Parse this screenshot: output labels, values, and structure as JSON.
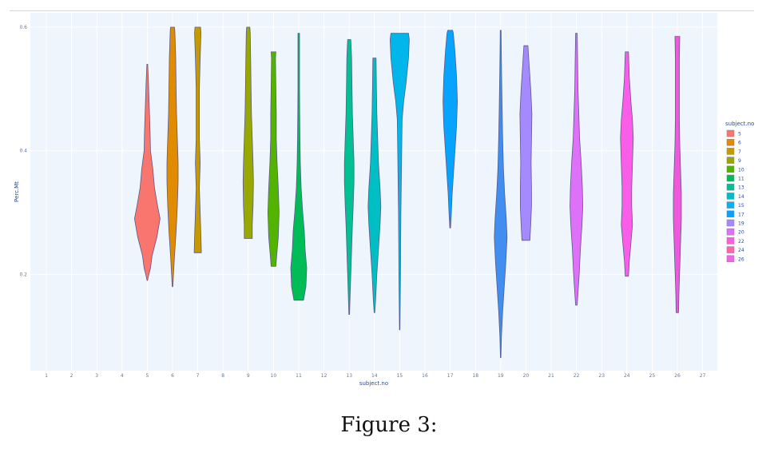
{
  "chart_data": {
    "type": "violin",
    "xlabel": "subject.no",
    "ylabel": "Perc.Mt",
    "x_ticks": [
      "1",
      "2",
      "3",
      "4",
      "5",
      "6",
      "7",
      "8",
      "9",
      "10",
      "11",
      "12",
      "13",
      "14",
      "15",
      "16",
      "17",
      "18",
      "19",
      "20",
      "21",
      "22",
      "23",
      "24",
      "25",
      "26",
      "27"
    ],
    "y_ticks": [
      0.2,
      0.4,
      0.6
    ],
    "y_tick_labels": [
      "0.2",
      "0.4",
      "0.6"
    ],
    "ylim": [
      0.05,
      0.64
    ],
    "grid": true,
    "legend": {
      "title": "subject.no",
      "placement": "right",
      "entries": [
        {
          "label": "5",
          "color": "#f8766d"
        },
        {
          "label": "6",
          "color": "#e08b00"
        },
        {
          "label": "7",
          "color": "#c49a00"
        },
        {
          "label": "9",
          "color": "#99a800"
        },
        {
          "label": "10",
          "color": "#53b400"
        },
        {
          "label": "11",
          "color": "#00bc56"
        },
        {
          "label": "13",
          "color": "#00c094"
        },
        {
          "label": "14",
          "color": "#00bfc4"
        },
        {
          "label": "15",
          "color": "#00b6eb"
        },
        {
          "label": "17",
          "color": "#06a4ff"
        },
        {
          "label": "19",
          "color": "#a58aff"
        },
        {
          "label": "20",
          "color": "#df70f8"
        },
        {
          "label": "22",
          "color": "#fb61d7"
        },
        {
          "label": "24",
          "color": "#ff66a8"
        },
        {
          "label": "26",
          "color": "#f265e0"
        }
      ]
    },
    "series": [
      {
        "subject": 5,
        "color": "#f8766d",
        "profile": [
          [
            0.19,
            0.3
          ],
          [
            0.2,
            2
          ],
          [
            0.21,
            4
          ],
          [
            0.23,
            6
          ],
          [
            0.26,
            12
          ],
          [
            0.29,
            16
          ],
          [
            0.31,
            13
          ],
          [
            0.34,
            9
          ],
          [
            0.37,
            7
          ],
          [
            0.4,
            4
          ],
          [
            0.43,
            3.5
          ],
          [
            0.47,
            2.5
          ],
          [
            0.51,
            1.5
          ],
          [
            0.54,
            0.5
          ]
        ]
      },
      {
        "subject": 6,
        "color": "#e08b00",
        "profile": [
          [
            0.18,
            0.4
          ],
          [
            0.2,
            1.2
          ],
          [
            0.23,
            2.5
          ],
          [
            0.27,
            4.5
          ],
          [
            0.31,
            6
          ],
          [
            0.35,
            7
          ],
          [
            0.38,
            7
          ],
          [
            0.42,
            6
          ],
          [
            0.46,
            5
          ],
          [
            0.5,
            4.5
          ],
          [
            0.55,
            4
          ],
          [
            0.59,
            3
          ],
          [
            0.6,
            2.5
          ]
        ]
      },
      {
        "subject": 7,
        "color": "#c49a00",
        "profile": [
          [
            0.235,
            4.5
          ],
          [
            0.26,
            4
          ],
          [
            0.3,
            3
          ],
          [
            0.34,
            2
          ],
          [
            0.38,
            3
          ],
          [
            0.42,
            2
          ],
          [
            0.46,
            2
          ],
          [
            0.5,
            2
          ],
          [
            0.55,
            3
          ],
          [
            0.59,
            4
          ],
          [
            0.6,
            3.5
          ]
        ]
      },
      {
        "subject": 9,
        "color": "#99a800",
        "profile": [
          [
            0.258,
            5
          ],
          [
            0.28,
            5
          ],
          [
            0.31,
            6
          ],
          [
            0.35,
            6.5
          ],
          [
            0.38,
            6
          ],
          [
            0.42,
            5
          ],
          [
            0.46,
            4
          ],
          [
            0.5,
            3.5
          ],
          [
            0.55,
            3
          ],
          [
            0.59,
            2.5
          ],
          [
            0.6,
            2
          ]
        ]
      },
      {
        "subject": 10,
        "color": "#53b400",
        "profile": [
          [
            0.213,
            3
          ],
          [
            0.23,
            4
          ],
          [
            0.26,
            6
          ],
          [
            0.3,
            7
          ],
          [
            0.34,
            6
          ],
          [
            0.38,
            4.5
          ],
          [
            0.42,
            3.5
          ],
          [
            0.46,
            3.5
          ],
          [
            0.5,
            3
          ],
          [
            0.55,
            2.5
          ],
          [
            0.56,
            3
          ]
        ]
      },
      {
        "subject": 11,
        "color": "#00bc56",
        "profile": [
          [
            0.158,
            6
          ],
          [
            0.18,
            9
          ],
          [
            0.21,
            10
          ],
          [
            0.24,
            8
          ],
          [
            0.27,
            7
          ],
          [
            0.3,
            5
          ],
          [
            0.34,
            3
          ],
          [
            0.38,
            2
          ],
          [
            0.42,
            1.5
          ],
          [
            0.46,
            1.2
          ],
          [
            0.5,
            1
          ],
          [
            0.55,
            1
          ],
          [
            0.59,
            1
          ]
        ]
      },
      {
        "subject": 13,
        "color": "#00c094",
        "profile": [
          [
            0.135,
            0.4
          ],
          [
            0.16,
            1
          ],
          [
            0.2,
            2
          ],
          [
            0.24,
            3
          ],
          [
            0.28,
            4
          ],
          [
            0.31,
            5
          ],
          [
            0.35,
            6
          ],
          [
            0.38,
            6
          ],
          [
            0.42,
            5
          ],
          [
            0.46,
            4
          ],
          [
            0.5,
            3.5
          ],
          [
            0.55,
            3
          ],
          [
            0.58,
            2
          ]
        ]
      },
      {
        "subject": 14,
        "color": "#00bfc4",
        "profile": [
          [
            0.138,
            0.4
          ],
          [
            0.16,
            1.5
          ],
          [
            0.2,
            3
          ],
          [
            0.24,
            5
          ],
          [
            0.28,
            7
          ],
          [
            0.31,
            8
          ],
          [
            0.34,
            7
          ],
          [
            0.38,
            5
          ],
          [
            0.42,
            4
          ],
          [
            0.46,
            3
          ],
          [
            0.5,
            2.5
          ],
          [
            0.55,
            2
          ]
        ]
      },
      {
        "subject": 15,
        "color": "#00b6eb",
        "profile": [
          [
            0.11,
            0.3
          ],
          [
            0.15,
            0.6
          ],
          [
            0.2,
            1
          ],
          [
            0.25,
            1.2
          ],
          [
            0.3,
            1.5
          ],
          [
            0.35,
            2
          ],
          [
            0.4,
            2.5
          ],
          [
            0.45,
            3
          ],
          [
            0.48,
            5
          ],
          [
            0.51,
            8
          ],
          [
            0.55,
            11
          ],
          [
            0.58,
            12
          ],
          [
            0.59,
            11
          ]
        ]
      },
      {
        "subject": 17,
        "color": "#06a4ff",
        "profile": [
          [
            0.275,
            0.5
          ],
          [
            0.3,
            1.5
          ],
          [
            0.33,
            2.5
          ],
          [
            0.36,
            4
          ],
          [
            0.4,
            6
          ],
          [
            0.44,
            8
          ],
          [
            0.48,
            9
          ],
          [
            0.52,
            8
          ],
          [
            0.56,
            6
          ],
          [
            0.59,
            4
          ],
          [
            0.595,
            3
          ]
        ]
      },
      {
        "subject": 19,
        "color": "#3f8ef0",
        "profile": [
          [
            0.065,
            0.3
          ],
          [
            0.1,
            1
          ],
          [
            0.14,
            2.5
          ],
          [
            0.18,
            4.5
          ],
          [
            0.22,
            6.5
          ],
          [
            0.26,
            8
          ],
          [
            0.29,
            7
          ],
          [
            0.33,
            5
          ],
          [
            0.37,
            3.5
          ],
          [
            0.42,
            2.5
          ],
          [
            0.47,
            1.8
          ],
          [
            0.52,
            1.2
          ],
          [
            0.56,
            0.8
          ],
          [
            0.595,
            0.5
          ]
        ]
      },
      {
        "subject": 20,
        "color": "#a58aff",
        "profile": [
          [
            0.255,
            5
          ],
          [
            0.28,
            6
          ],
          [
            0.31,
            7
          ],
          [
            0.34,
            7
          ],
          [
            0.38,
            6.5
          ],
          [
            0.42,
            7
          ],
          [
            0.46,
            7.5
          ],
          [
            0.5,
            6
          ],
          [
            0.54,
            4
          ],
          [
            0.57,
            2.5
          ]
        ]
      },
      {
        "subject": 22,
        "color": "#df70f8",
        "profile": [
          [
            0.15,
            1
          ],
          [
            0.17,
            2
          ],
          [
            0.2,
            3.5
          ],
          [
            0.24,
            5
          ],
          [
            0.28,
            7
          ],
          [
            0.31,
            8
          ],
          [
            0.34,
            7.5
          ],
          [
            0.38,
            6
          ],
          [
            0.42,
            4
          ],
          [
            0.46,
            3
          ],
          [
            0.5,
            2
          ],
          [
            0.55,
            1.5
          ],
          [
            0.59,
            1
          ]
        ]
      },
      {
        "subject": 24,
        "color": "#fa5ee8",
        "profile": [
          [
            0.197,
            2
          ],
          [
            0.22,
            3
          ],
          [
            0.25,
            5
          ],
          [
            0.28,
            7
          ],
          [
            0.31,
            6
          ],
          [
            0.34,
            6
          ],
          [
            0.38,
            7
          ],
          [
            0.42,
            8
          ],
          [
            0.45,
            7
          ],
          [
            0.48,
            5
          ],
          [
            0.52,
            3
          ],
          [
            0.56,
            2
          ]
        ]
      },
      {
        "subject": 26,
        "color": "#f058dc",
        "profile": [
          [
            0.138,
            1.5
          ],
          [
            0.17,
            2
          ],
          [
            0.21,
            3
          ],
          [
            0.25,
            4
          ],
          [
            0.29,
            5
          ],
          [
            0.33,
            5
          ],
          [
            0.37,
            4
          ],
          [
            0.41,
            3
          ],
          [
            0.45,
            2.5
          ],
          [
            0.5,
            2.5
          ],
          [
            0.55,
            2.5
          ],
          [
            0.585,
            3
          ]
        ]
      }
    ]
  },
  "caption": "Figure 3:"
}
